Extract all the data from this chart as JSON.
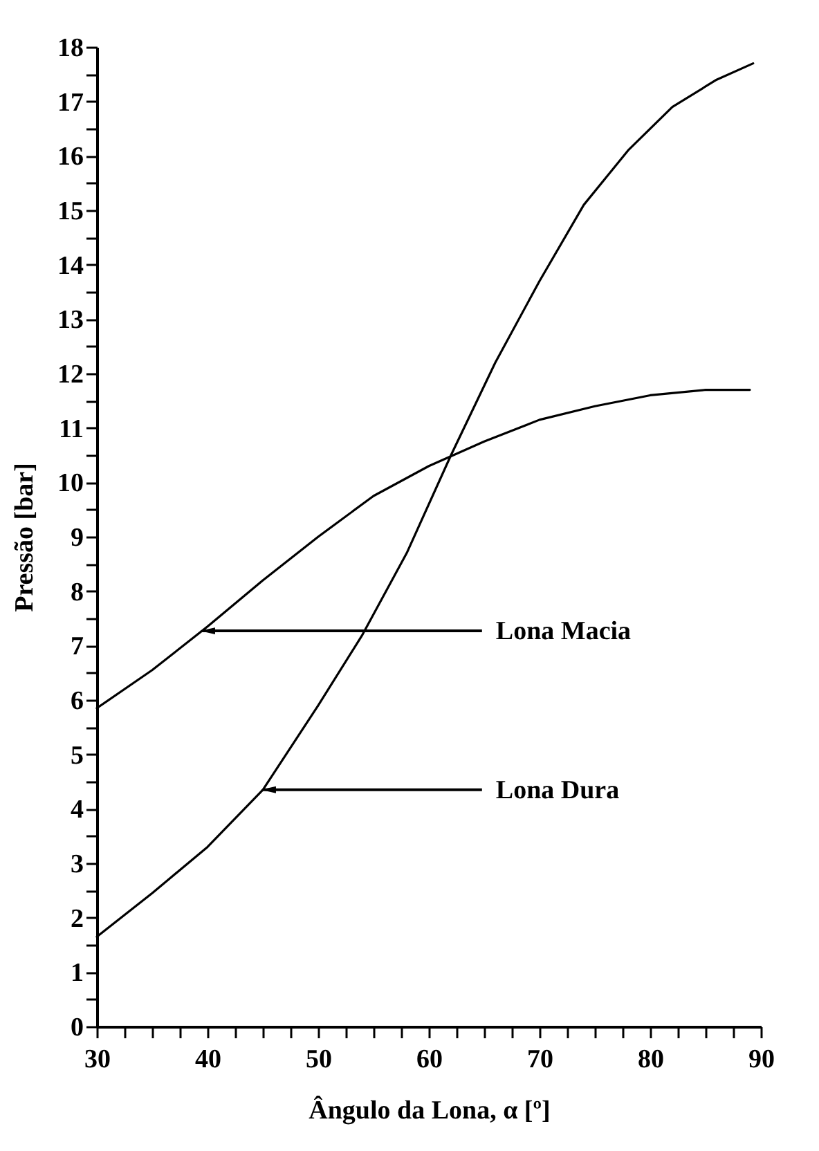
{
  "chart_data": {
    "type": "line",
    "xlabel": "Ângulo da Lona, α [º]",
    "ylabel": "Pressão [bar]",
    "xlim": [
      30,
      90
    ],
    "ylim": [
      0,
      18
    ],
    "xticks": [
      30,
      {
        "value": 32.5,
        "label": null
      },
      {
        "value": 35,
        "label": null
      },
      {
        "value": 37.5,
        "label": null
      },
      40,
      {
        "value": 42.5,
        "label": null
      },
      {
        "value": 45,
        "label": null
      },
      {
        "value": 47.5,
        "label": null
      },
      50,
      {
        "value": 52.5,
        "label": null
      },
      {
        "value": 55,
        "label": null
      },
      {
        "value": 57.5,
        "label": null
      },
      60,
      {
        "value": 62.5,
        "label": null
      },
      {
        "value": 65,
        "label": null
      },
      {
        "value": 67.5,
        "label": null
      },
      70,
      {
        "value": 72.5,
        "label": null
      },
      {
        "value": 75,
        "label": null
      },
      {
        "value": 77.5,
        "label": null
      },
      80,
      {
        "value": 82.5,
        "label": null
      },
      {
        "value": 85,
        "label": null
      },
      {
        "value": 87.5,
        "label": null
      },
      90
    ],
    "yticks": [
      0,
      {
        "value": 0.5,
        "label": null
      },
      1,
      {
        "value": 1.5,
        "label": null
      },
      2,
      {
        "value": 2.5,
        "label": null
      },
      3,
      {
        "value": 3.5,
        "label": null
      },
      4,
      {
        "value": 4.5,
        "label": null
      },
      5,
      {
        "value": 5.5,
        "label": null
      },
      6,
      {
        "value": 6.5,
        "label": null
      },
      7,
      {
        "value": 7.5,
        "label": null
      },
      8,
      {
        "value": 8.5,
        "label": null
      },
      9,
      {
        "value": 9.5,
        "label": null
      },
      10,
      {
        "value": 10.5,
        "label": null
      },
      11,
      {
        "value": 11.5,
        "label": null
      },
      12,
      {
        "value": 12.5,
        "label": null
      },
      13,
      {
        "value": 13.5,
        "label": null
      },
      14,
      {
        "value": 14.5,
        "label": null
      },
      15,
      {
        "value": 15.5,
        "label": null
      },
      16,
      {
        "value": 16.5,
        "label": null
      },
      17,
      {
        "value": 17.5,
        "label": null
      },
      18
    ],
    "grid": false,
    "marker": "none",
    "line_style": "solid",
    "series": [
      {
        "color": "#000000",
        "x": [
          30,
          35,
          40,
          45,
          50,
          55,
          60,
          65,
          70,
          75,
          80,
          85,
          89
        ],
        "values": [
          5.85,
          6.55,
          7.35,
          8.2,
          9.0,
          9.75,
          10.3,
          10.75,
          11.15,
          11.4,
          11.6,
          11.7,
          11.7
        ]
      },
      {
        "color": "#000000",
        "x": [
          30,
          35,
          40,
          45,
          50,
          54,
          58,
          62,
          66,
          70,
          74,
          78,
          82,
          86,
          89.3
        ],
        "values": [
          1.65,
          2.45,
          3.3,
          4.35,
          5.9,
          7.2,
          8.7,
          10.5,
          12.2,
          13.7,
          15.1,
          16.1,
          16.9,
          17.4,
          17.7
        ]
      }
    ],
    "annotations": [
      {
        "text": "Lona Macia",
        "x": 39.5,
        "y": 7.27
      },
      {
        "text": "Lona Dura",
        "x": 45,
        "y": 4.35
      }
    ]
  }
}
